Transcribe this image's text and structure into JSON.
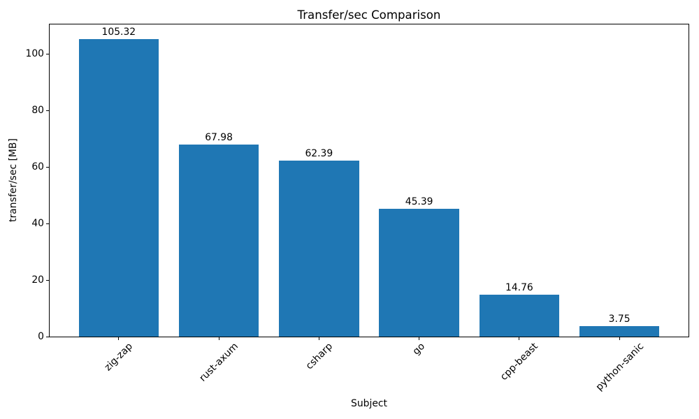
{
  "chart_data": {
    "type": "bar",
    "title": "Transfer/sec Comparison",
    "xlabel": "Subject",
    "ylabel": "transfer/sec [MB]",
    "categories": [
      "zig-zap",
      "rust-axum",
      "csharp",
      "go",
      "cpp-beast",
      "python-sanic"
    ],
    "values": [
      105.32,
      67.98,
      62.39,
      45.39,
      14.76,
      3.75
    ],
    "value_labels": [
      "105.32",
      "67.98",
      "62.39",
      "45.39",
      "14.76",
      "3.75"
    ],
    "yticks": [
      0,
      20,
      40,
      60,
      80,
      100
    ],
    "ytick_labels": [
      "0",
      "20",
      "40",
      "60",
      "80",
      "100"
    ],
    "ylim": [
      0,
      110.59
    ],
    "xlim": [
      -0.69,
      5.69
    ],
    "bar_width": 0.8,
    "x_tick_rotation": 45,
    "grid": false,
    "legend": null,
    "bar_color": "#1f77b4",
    "text_color": "#000000",
    "spine_color": "#000000",
    "background_color": "#ffffff"
  }
}
